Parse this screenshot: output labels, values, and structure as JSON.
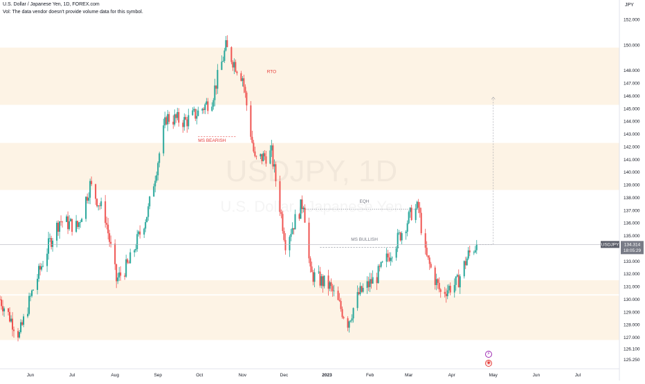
{
  "header": {
    "title": "U.S. Dollar / Japanese Yen, 1D, FOREX.com",
    "volume_note": "Vol: The data vendor doesn't provide volume data for this symbol."
  },
  "watermark": {
    "symbol": "USDJPY, 1D",
    "name": "U.S. Dollar / Japanese Yen"
  },
  "price_tag": {
    "symbol": "USDJPY",
    "price": "134.314",
    "countdown": "18:05:29"
  },
  "markers": {
    "flash_icon": "lightning-icon",
    "target_icon": "target-icon"
  },
  "colors": {
    "up": "#26a69a",
    "down": "#ef5350",
    "zone": "#fdf1e1",
    "label": "#e53935",
    "neutral": "#787b86"
  },
  "chart_data": {
    "type": "candlestick",
    "symbol": "USDJPY",
    "interval": "1D",
    "y_unit": "JPY",
    "ylim": [
      124.7,
      153.0
    ],
    "y_ticks": [
      125.25,
      126.1,
      127.0,
      128.0,
      129.0,
      130.0,
      131.0,
      132.0,
      133.0,
      134.0,
      135.0,
      136.0,
      137.0,
      138.0,
      139.0,
      140.0,
      141.0,
      142.0,
      143.0,
      144.0,
      145.0,
      146.0,
      147.0,
      148.0,
      150.0,
      152.0
    ],
    "x_ticks": [
      {
        "label": "Jun",
        "date": "2022-06-01"
      },
      {
        "label": "Jul",
        "date": "2022-07-01"
      },
      {
        "label": "Aug",
        "date": "2022-08-01"
      },
      {
        "label": "Sep",
        "date": "2022-09-01"
      },
      {
        "label": "Oct",
        "date": "2022-10-01"
      },
      {
        "label": "Nov",
        "date": "2022-11-01"
      },
      {
        "label": "Dec",
        "date": "2022-12-01"
      },
      {
        "label": "2023",
        "date": "2023-01-01"
      },
      {
        "label": "Feb",
        "date": "2023-02-01"
      },
      {
        "label": "Mar",
        "date": "2023-03-01"
      },
      {
        "label": "Apr",
        "date": "2023-04-01"
      },
      {
        "label": "May",
        "date": "2023-05-01"
      },
      {
        "label": "Jun",
        "date": "2023-06-01"
      },
      {
        "label": "Jul",
        "date": "2023-07-01"
      }
    ],
    "x_range": [
      "2022-05-10",
      "2023-07-31"
    ],
    "price_path": [
      {
        "date": "2022-05-10",
        "close": 130.0
      },
      {
        "date": "2022-05-24",
        "close": 127.2
      },
      {
        "date": "2022-06-02",
        "close": 130.5
      },
      {
        "date": "2022-06-15",
        "close": 134.5
      },
      {
        "date": "2022-06-22",
        "close": 136.2
      },
      {
        "date": "2022-07-05",
        "close": 135.7
      },
      {
        "date": "2022-07-14",
        "close": 139.0
      },
      {
        "date": "2022-07-25",
        "close": 136.5
      },
      {
        "date": "2022-08-02",
        "close": 131.5
      },
      {
        "date": "2022-08-11",
        "close": 132.8
      },
      {
        "date": "2022-08-25",
        "close": 137.0
      },
      {
        "date": "2022-09-07",
        "close": 144.3
      },
      {
        "date": "2022-09-21",
        "close": 144.0
      },
      {
        "date": "2022-09-30",
        "close": 144.7
      },
      {
        "date": "2022-10-10",
        "close": 145.8
      },
      {
        "date": "2022-10-20",
        "close": 149.8
      },
      {
        "date": "2022-10-24",
        "close": 149.0
      },
      {
        "date": "2022-11-01",
        "close": 147.5
      },
      {
        "date": "2022-11-10",
        "close": 140.9
      },
      {
        "date": "2022-11-22",
        "close": 141.5
      },
      {
        "date": "2022-12-02",
        "close": 134.5
      },
      {
        "date": "2022-12-15",
        "close": 137.7
      },
      {
        "date": "2022-12-20",
        "close": 132.0
      },
      {
        "date": "2023-01-03",
        "close": 131.0
      },
      {
        "date": "2023-01-16",
        "close": 128.2
      },
      {
        "date": "2023-01-24",
        "close": 130.4
      },
      {
        "date": "2023-02-06",
        "close": 131.8
      },
      {
        "date": "2023-02-20",
        "close": 134.5
      },
      {
        "date": "2023-03-03",
        "close": 136.8
      },
      {
        "date": "2023-03-08",
        "close": 137.2
      },
      {
        "date": "2023-03-13",
        "close": 133.5
      },
      {
        "date": "2023-03-24",
        "close": 130.5
      },
      {
        "date": "2023-04-05",
        "close": 131.3
      },
      {
        "date": "2023-04-13",
        "close": 133.5
      },
      {
        "date": "2023-04-19",
        "close": 134.314
      }
    ],
    "zones": [
      {
        "from": 145.3,
        "to": 149.8
      },
      {
        "from": 138.6,
        "to": 142.3
      },
      {
        "from": 130.4,
        "to": 131.5
      },
      {
        "from": 126.8,
        "to": 130.3
      }
    ],
    "annotations": [
      {
        "label": "RTO",
        "date": "2022-11-22",
        "price": 147.8
      },
      {
        "label": "MS BEARISH",
        "date": "2022-10-10",
        "price": 142.4
      },
      {
        "label": "EQH",
        "date": "2023-01-28",
        "price": 137.6
      },
      {
        "label": "MS BULLISH",
        "date": "2023-01-28",
        "price": 134.6
      }
    ],
    "last_price": 134.314,
    "projection": {
      "date": "2023-05-01",
      "from": 134.314,
      "to": 145.9
    }
  }
}
